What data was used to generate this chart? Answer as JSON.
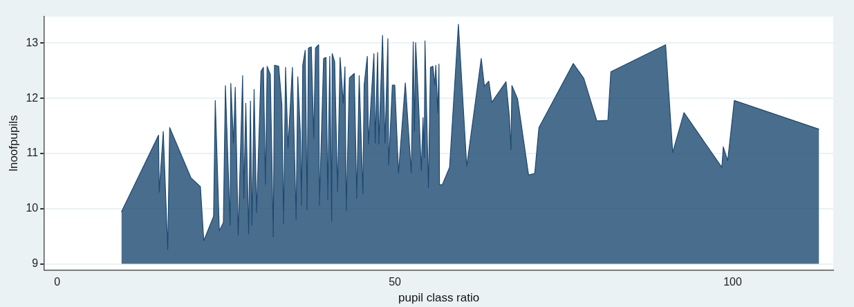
{
  "chart_data": {
    "type": "area",
    "xlabel": "pupil class ratio",
    "ylabel": "lnoofpupils",
    "xlim": [
      -1.9,
      114.9
    ],
    "ylim": [
      8.89,
      13.48
    ],
    "xticks": [
      0,
      50,
      100
    ],
    "yticks": [
      9,
      10,
      11,
      12,
      13
    ],
    "grid": "y",
    "legend": false,
    "marker": "none",
    "series": [
      {
        "color": "#1c4870",
        "x": [
          9.5,
          15.0,
          15.1,
          15.7,
          16.36,
          16.65,
          19.8,
          21.2,
          21.7,
          23.15,
          23.4,
          24.0,
          24.6,
          24.9,
          25.6,
          25.7,
          26.1,
          26.36,
          26.79,
          27.45,
          27.63,
          27.92,
          28.35,
          28.61,
          28.83,
          29.15,
          29.52,
          30.17,
          30.53,
          30.83,
          31.08,
          31.55,
          31.99,
          32.17,
          32.79,
          33.26,
          33.51,
          33.81,
          34.17,
          34.82,
          35.37,
          35.62,
          35.99,
          36.17,
          36.35,
          36.72,
          37.0,
          37.19,
          37.62,
          37.98,
          38.24,
          38.71,
          38.82,
          39.44,
          39.8,
          40.06,
          40.35,
          40.64,
          40.71,
          41.08,
          41.51,
          41.88,
          42.35,
          42.6,
          42.8,
          43.26,
          43.98,
          44.35,
          44.71,
          45.26,
          45.44,
          45.91,
          46.08,
          46.89,
          47.08,
          47.44,
          47.62,
          48.17,
          48.53,
          48.96,
          49.07,
          49.62,
          49.98,
          50.53,
          51.54,
          52.42,
          52.71,
          52.89,
          53.07,
          53.44,
          53.91,
          54.16,
          54.34,
          54.45,
          54.96,
          55.26,
          55.62,
          55.91,
          56.05,
          56.35,
          56.52,
          56.6,
          57.0,
          58.09,
          59.4,
          60.63,
          62.78,
          63.25,
          63.9,
          64.34,
          66.45,
          66.96,
          67.18,
          67.32,
          68.16,
          69.79,
          70.7,
          71.32,
          76.41,
          77.97,
          79.9,
          81.53,
          81.97,
          90.08,
          91.13,
          92.8,
          98.4,
          98.62,
          99.27,
          100.25,
          112.8
        ],
        "values": [
          9.94,
          11.33,
          10.3,
          11.4,
          9.26,
          11.47,
          10.56,
          10.4,
          9.42,
          9.86,
          11.96,
          9.6,
          9.75,
          12.23,
          9.7,
          12.27,
          11.19,
          12.2,
          9.52,
          12.41,
          10.19,
          11.91,
          9.54,
          11.95,
          9.7,
          12.16,
          9.93,
          12.49,
          12.56,
          10.44,
          12.58,
          12.43,
          9.49,
          12.6,
          12.58,
          11.88,
          9.73,
          12.56,
          11.11,
          12.56,
          9.81,
          12.39,
          11.4,
          10.06,
          12.6,
          12.87,
          9.98,
          12.91,
          12.93,
          11.28,
          12.91,
          12.97,
          10.06,
          12.72,
          12.74,
          10.17,
          12.76,
          9.77,
          12.81,
          12.66,
          10.31,
          12.74,
          11.91,
          12.57,
          9.96,
          12.37,
          12.45,
          10.19,
          12.41,
          10.27,
          12.24,
          12.76,
          11.17,
          12.81,
          11.19,
          12.83,
          11.17,
          13.14,
          11.19,
          13.08,
          10.79,
          12.24,
          12.24,
          10.65,
          12.28,
          10.65,
          13.02,
          11.4,
          13.01,
          12.07,
          10.69,
          11.65,
          10.92,
          13.04,
          10.38,
          12.56,
          12.58,
          12.24,
          12.6,
          11.74,
          12.62,
          10.44,
          10.43,
          10.75,
          13.34,
          10.77,
          12.72,
          12.22,
          12.31,
          11.93,
          12.3,
          11.65,
          11.07,
          12.23,
          11.99,
          10.61,
          10.64,
          11.47,
          12.63,
          12.36,
          11.59,
          11.6,
          12.48,
          12.97,
          11.02,
          11.74,
          10.75,
          11.12,
          10.87,
          11.96,
          11.44
        ]
      }
    ]
  }
}
